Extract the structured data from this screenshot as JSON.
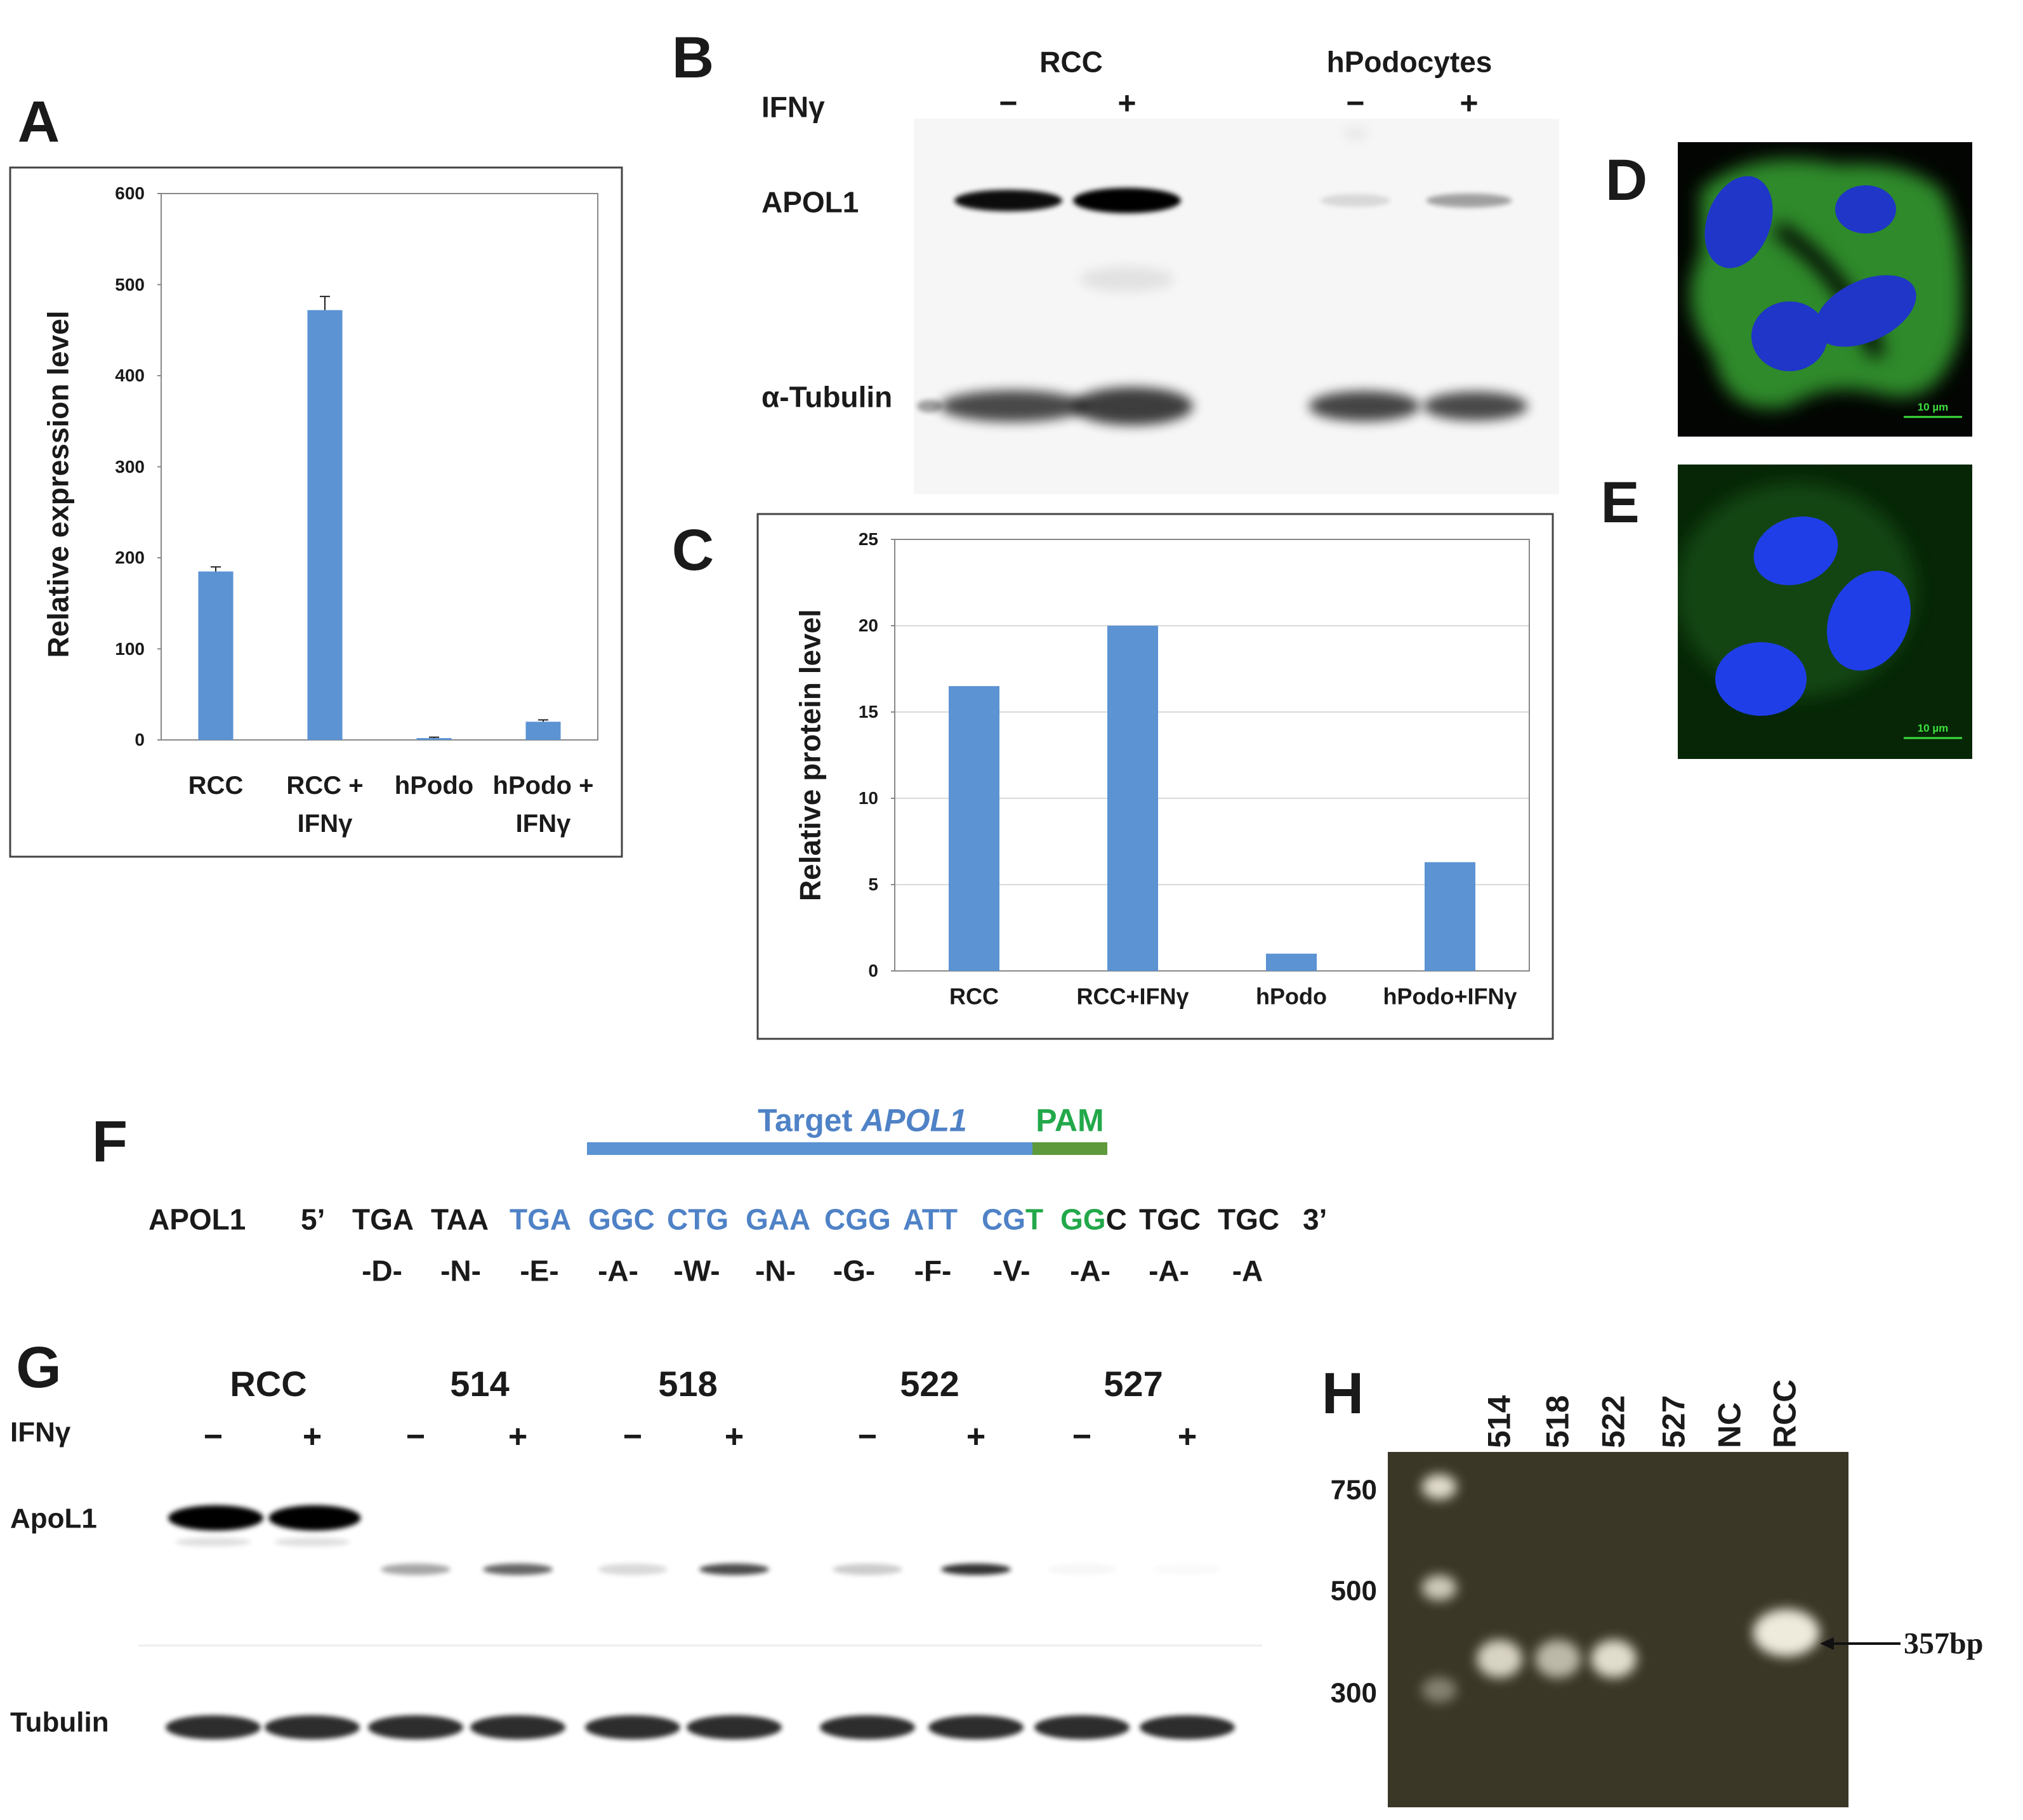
{
  "panel_labels": [
    "A",
    "B",
    "C",
    "D",
    "E",
    "F",
    "G",
    "H"
  ],
  "chart_data": [
    {
      "type": "bar",
      "ylabel": "Relative expression level",
      "categories": [
        "RCC",
        "RCC + IFNγ",
        "hPodo",
        "hPodo + IFNγ"
      ],
      "values": [
        185,
        472,
        2,
        20
      ],
      "errors": [
        5,
        15,
        1,
        2
      ],
      "color": "#5b93d3",
      "ylim": [
        0,
        600
      ],
      "yticks": [
        0,
        100,
        200,
        300,
        400,
        500,
        600
      ],
      "grid": false
    },
    {
      "type": "bar",
      "ylabel": "Relative protein level",
      "categories": [
        "RCC",
        "RCC+IFNγ",
        "hPodo",
        "hPodo+IFNγ"
      ],
      "values": [
        16.5,
        20,
        1,
        6.3
      ],
      "color": "#5b93d3",
      "ylim": [
        0,
        25
      ],
      "yticks": [
        0,
        5,
        10,
        15,
        20,
        25
      ],
      "grid": true
    }
  ],
  "western_blot_b": {
    "groups": [
      "RCC",
      "hPodocytes"
    ],
    "treatment": "IFNγ",
    "lane_signs": [
      "−",
      "+",
      "−",
      "+"
    ],
    "rows": [
      "APOL1",
      "α-Tubulin"
    ]
  },
  "microscopy": {
    "scale_bars": [
      "10 µm",
      "10 µm"
    ]
  },
  "sequence": {
    "target": "Target",
    "target_gene": "APOL1",
    "pam": "PAM",
    "gene": "APOL1",
    "five_prime": "5’",
    "three_prime": "3’",
    "codons": [
      [
        {
          "text": "TGA",
          "color": "#1a1a1a"
        }
      ],
      [
        {
          "text": "TAA",
          "color": "#1a1a1a"
        }
      ],
      [
        {
          "text": "TGA",
          "color": "#4f82c6"
        }
      ],
      [
        {
          "text": "GGC",
          "color": "#4f82c6"
        }
      ],
      [
        {
          "text": "CTG",
          "color": "#4f82c6"
        }
      ],
      [
        {
          "text": "GAA",
          "color": "#4f82c6"
        }
      ],
      [
        {
          "text": "CGG",
          "color": "#4f82c6"
        }
      ],
      [
        {
          "text": "ATT",
          "color": "#4f82c6"
        }
      ],
      [
        {
          "text": "CG",
          "color": "#4f82c6"
        },
        {
          "text": "T",
          "color": "#22a84a"
        }
      ],
      [
        {
          "text": "GG",
          "color": "#22a84a"
        },
        {
          "text": "C",
          "color": "#1a1a1a"
        }
      ],
      [
        {
          "text": "TGC",
          "color": "#1a1a1a"
        }
      ],
      [
        {
          "text": "TGC",
          "color": "#1a1a1a"
        }
      ]
    ],
    "amino_acids": [
      "-D-",
      "-N-",
      "-E-",
      "-A-",
      "-W-",
      "-N-",
      "-G-",
      "-F-",
      "-V-",
      "-A-",
      "-A-",
      "-A"
    ]
  },
  "western_blot_g": {
    "lanes": [
      "RCC",
      "514",
      "518",
      "522",
      "527"
    ],
    "treatment": "IFNγ",
    "lane_signs": [
      "−",
      "+",
      "−",
      "+",
      "−",
      "+",
      "−",
      "+",
      "−",
      "+"
    ],
    "rows": [
      "ApoL1",
      "Tubulin"
    ]
  },
  "gel_h": {
    "lanes": [
      "514",
      "518",
      "522",
      "527",
      "NC",
      "RCC"
    ],
    "ladder": [
      750,
      500,
      300
    ],
    "product": "357bp"
  }
}
